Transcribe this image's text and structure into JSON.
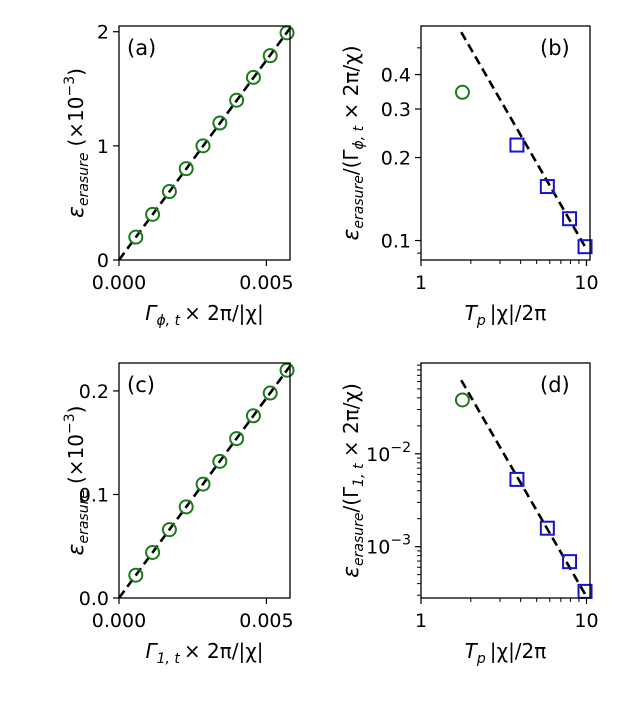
{
  "colors": {
    "circle": "#1b7a1b",
    "square": "#1414d2",
    "fit": "#000000"
  },
  "chart_data": [
    {
      "id": "a",
      "type": "scatter",
      "panel_label": "(a)",
      "xlabel_main": "Γ",
      "xlabel_sub": "ϕ, t",
      "xlabel_rest": "× 2π/|χ|",
      "ylabel_main": "ε",
      "ylabel_sub": "erasure",
      "ylabel_unit": "(×10",
      "ylabel_exp": "−3",
      "ylabel_close": ")",
      "xlim": [
        0,
        0.0058
      ],
      "ylim": [
        0,
        2.05
      ],
      "xscale": "linear",
      "yscale": "linear",
      "xticks": [
        0,
        0.005
      ],
      "xtick_labels": [
        "0.000",
        "0.005"
      ],
      "yticks": [
        0,
        1,
        2
      ],
      "ytick_labels": [
        "0",
        "1",
        "2"
      ],
      "series": [
        {
          "name": "circles",
          "marker": "circle",
          "x": [
            0.00057,
            0.00114,
            0.00171,
            0.00228,
            0.00285,
            0.00342,
            0.00399,
            0.00456,
            0.00513,
            0.0057
          ],
          "y": [
            0.2,
            0.4,
            0.6,
            0.8,
            1.0,
            1.2,
            1.4,
            1.6,
            1.79,
            1.99
          ]
        },
        {
          "name": "fit",
          "marker": "dashed-line",
          "x": [
            0,
            0.0058
          ],
          "y": [
            0,
            2.03
          ]
        }
      ]
    },
    {
      "id": "b",
      "type": "scatter",
      "panel_label": "(b)",
      "xlabel_main": "T",
      "xlabel_sub": "p",
      "xlabel_rest": "|χ|/2π",
      "ylabel_main": "ε",
      "ylabel_sub": "erasure",
      "ylabel_unit": "/(Γ",
      "ylabel_sub2": "ϕ, t",
      "ylabel_close": " × 2π/χ)",
      "xlim": [
        1,
        10.5
      ],
      "ylim": [
        0.085,
        0.6
      ],
      "xscale": "log",
      "yscale": "log",
      "xticks": [
        1,
        10
      ],
      "xtick_labels": [
        "1",
        "10"
      ],
      "yticks": [
        0.1,
        0.2,
        0.3,
        0.4
      ],
      "ytick_labels": [
        "0.1",
        "0.2",
        "0.3",
        "0.4"
      ],
      "series": [
        {
          "name": "circles",
          "marker": "circle",
          "x": [
            1.78
          ],
          "y": [
            0.345
          ]
        },
        {
          "name": "squares",
          "marker": "square",
          "x": [
            3.8,
            5.8,
            7.9,
            9.8
          ],
          "y": [
            0.222,
            0.157,
            0.12,
            0.095
          ]
        },
        {
          "name": "fit",
          "marker": "dashed-line",
          "x": [
            1.75,
            10
          ],
          "y": [
            0.57,
            0.093
          ]
        }
      ]
    },
    {
      "id": "c",
      "type": "scatter",
      "panel_label": "(c)",
      "xlabel_main": "Γ",
      "xlabel_sub": "1, t",
      "xlabel_rest": "× 2π/|χ|",
      "ylabel_main": "ε",
      "ylabel_sub": "erasure",
      "ylabel_unit": "(×10",
      "ylabel_exp": "−3",
      "ylabel_close": ")",
      "xlim": [
        0,
        0.0058
      ],
      "ylim": [
        0,
        0.227
      ],
      "xscale": "linear",
      "yscale": "linear",
      "xticks": [
        0,
        0.005
      ],
      "xtick_labels": [
        "0.000",
        "0.005"
      ],
      "yticks": [
        0,
        0.1,
        0.2
      ],
      "ytick_labels": [
        "0.0",
        "0.1",
        "0.2"
      ],
      "series": [
        {
          "name": "circles",
          "marker": "circle",
          "x": [
            0.00057,
            0.00114,
            0.00171,
            0.00228,
            0.00285,
            0.00342,
            0.00399,
            0.00456,
            0.00513,
            0.0057
          ],
          "y": [
            0.022,
            0.044,
            0.066,
            0.088,
            0.11,
            0.132,
            0.154,
            0.176,
            0.198,
            0.22
          ]
        },
        {
          "name": "fit",
          "marker": "dashed-line",
          "x": [
            0,
            0.0058
          ],
          "y": [
            0,
            0.224
          ]
        }
      ]
    },
    {
      "id": "d",
      "type": "scatter",
      "panel_label": "(d)",
      "xlabel_main": "T",
      "xlabel_sub": "p",
      "xlabel_rest": "|χ|/2π",
      "ylabel_main": "ε",
      "ylabel_sub": "erasure",
      "ylabel_unit": "/(Γ",
      "ylabel_sub2": "1, t",
      "ylabel_close": " × 2π/χ)",
      "xlim": [
        1,
        10.5
      ],
      "ylim": [
        0.00028,
        0.095
      ],
      "xscale": "log",
      "yscale": "log",
      "xticks": [
        1,
        10
      ],
      "xtick_labels": [
        "1",
        "10"
      ],
      "yticks": [
        0.001,
        0.01
      ],
      "ytick_base": "10",
      "ytick_exps": [
        "−3",
        "−2"
      ],
      "series": [
        {
          "name": "circles",
          "marker": "circle",
          "x": [
            1.78
          ],
          "y": [
            0.038
          ]
        },
        {
          "name": "squares",
          "marker": "square",
          "x": [
            3.8,
            5.8,
            7.9,
            9.8
          ],
          "y": [
            0.0053,
            0.00158,
            0.00069,
            0.00033
          ]
        },
        {
          "name": "fit",
          "marker": "dashed-line",
          "x": [
            1.75,
            10
          ],
          "y": [
            0.062,
            0.00029
          ]
        }
      ]
    }
  ]
}
